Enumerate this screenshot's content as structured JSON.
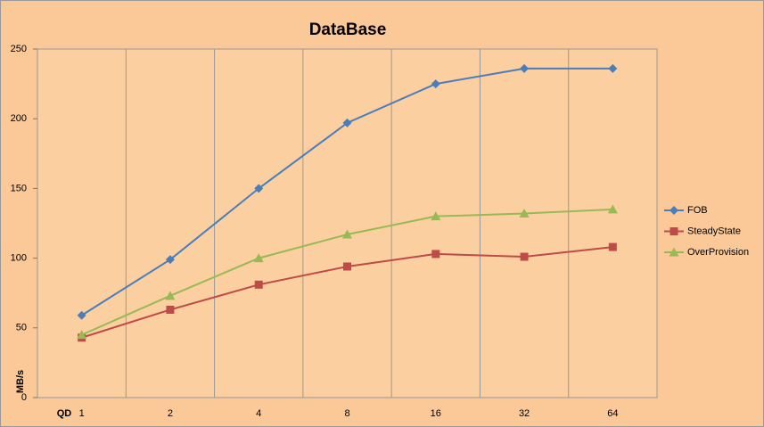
{
  "chart_data": {
    "type": "line",
    "title": "DataBase",
    "x_label": "QD",
    "y_label": "MB/s",
    "categories": [
      "1",
      "2",
      "4",
      "8",
      "16",
      "32",
      "64"
    ],
    "series": [
      {
        "name": "FOB",
        "color": "#4a7ebb",
        "marker": "diamond",
        "values": [
          59,
          99,
          150,
          197,
          225,
          236,
          236
        ]
      },
      {
        "name": "SteadyState",
        "color": "#be4b48",
        "marker": "square",
        "values": [
          43,
          63,
          81,
          94,
          103,
          101,
          108
        ]
      },
      {
        "name": "OverProvision",
        "color": "#98b954",
        "marker": "triangle",
        "values": [
          45,
          73,
          100,
          117,
          130,
          132,
          135
        ]
      }
    ],
    "ylim": [
      0,
      250
    ],
    "yticks": [
      0,
      50,
      100,
      150,
      200,
      250
    ],
    "legend": "right"
  }
}
